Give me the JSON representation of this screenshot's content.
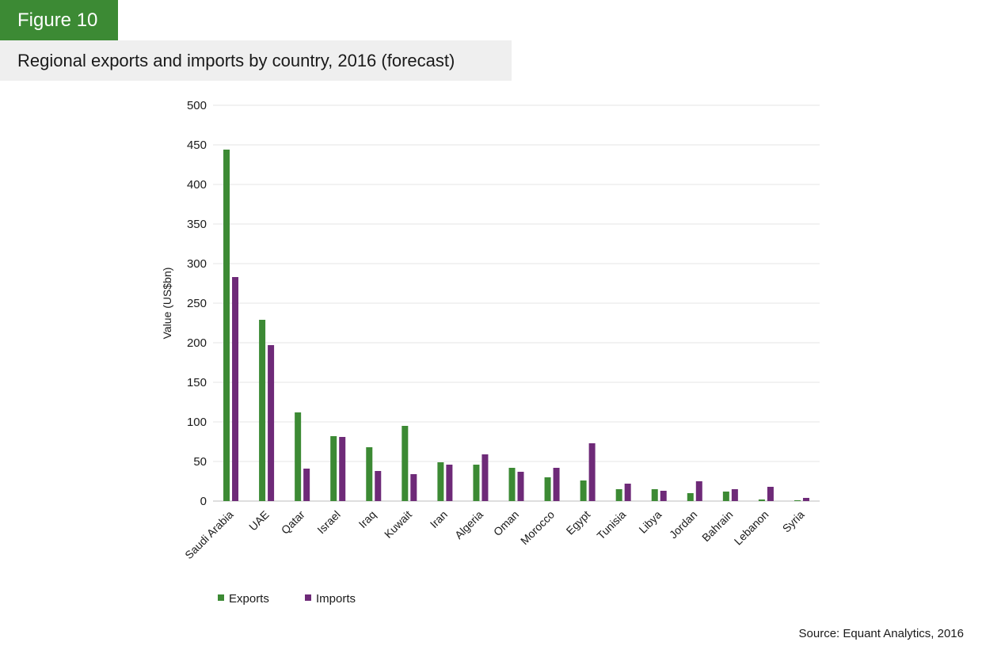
{
  "figure_label": "Figure 10",
  "figure_title": "Regional exports and imports by country, 2016 (forecast)",
  "source": "Source: Equant Analytics, 2016",
  "colors": {
    "badge": "#3c8a34",
    "exports": "#3c8a34",
    "imports": "#6e2a78"
  },
  "chart_data": {
    "type": "bar",
    "title": "",
    "xlabel": "",
    "ylabel": "Value (US$bn)",
    "ylim": [
      0,
      500
    ],
    "yticks": [
      0,
      50,
      100,
      150,
      200,
      250,
      300,
      350,
      400,
      450,
      500
    ],
    "grid": true,
    "legend_position": "bottom-left",
    "categories": [
      "Saudi Arabia",
      "UAE",
      "Qatar",
      "Israel",
      "Iraq",
      "Kuwait",
      "Iran",
      "Algeria",
      "Oman",
      "Morocco",
      "Egypt",
      "Tunisia",
      "Libya",
      "Jordan",
      "Bahrain",
      "Lebanon",
      "Syria"
    ],
    "series": [
      {
        "name": "Exports",
        "color": "#3c8a34",
        "values": [
          444,
          229,
          112,
          82,
          68,
          95,
          49,
          46,
          42,
          30,
          26,
          15,
          15,
          10,
          12,
          2,
          1
        ]
      },
      {
        "name": "Imports",
        "color": "#6e2a78",
        "values": [
          283,
          197,
          41,
          81,
          38,
          34,
          46,
          59,
          37,
          42,
          73,
          22,
          13,
          25,
          15,
          18,
          4
        ]
      }
    ]
  }
}
